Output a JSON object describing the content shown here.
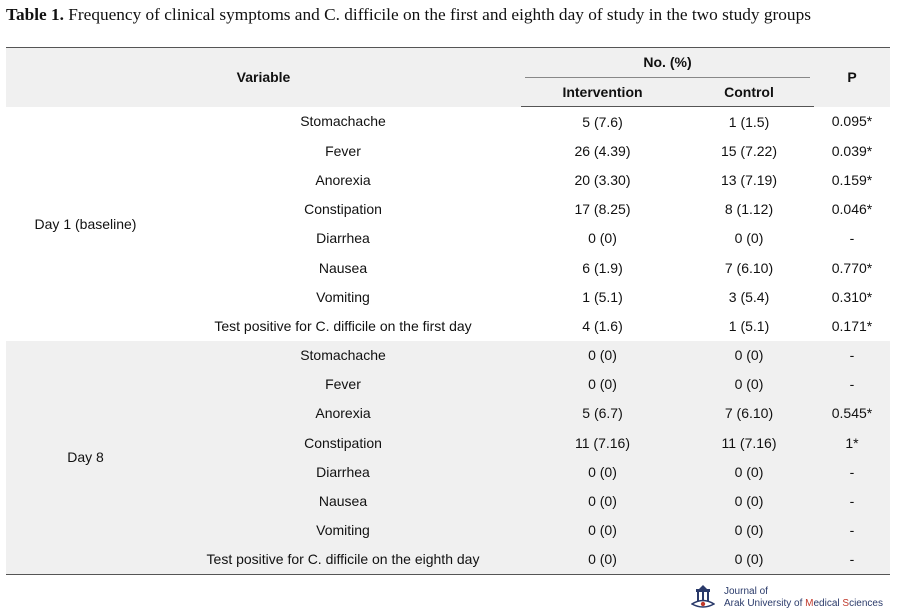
{
  "caption": {
    "label": "Table 1.",
    "text": "Frequency of clinical symptoms and C. difficile on the first and eighth day of study in the two study groups"
  },
  "header": {
    "variable": "Variable",
    "group_header": "No. (%)",
    "intervention": "Intervention",
    "control": "Control",
    "p": "P"
  },
  "groups": [
    {
      "label": "Day 1 (baseline)",
      "rows": [
        {
          "variable": "Stomachache",
          "intervention": "5 (7.6)",
          "control": "1 (1.5)",
          "p": "0.095*"
        },
        {
          "variable": "Fever",
          "intervention": "26 (4.39)",
          "control": "15 (7.22)",
          "p": "0.039*"
        },
        {
          "variable": "Anorexia",
          "intervention": "20 (3.30)",
          "control": "13 (7.19)",
          "p": "0.159*"
        },
        {
          "variable": "Constipation",
          "intervention": "17 (8.25)",
          "control": "8 (1.12)",
          "p": "0.046*"
        },
        {
          "variable": "Diarrhea",
          "intervention": "0 (0)",
          "control": "0 (0)",
          "p": "-"
        },
        {
          "variable": "Nausea",
          "intervention": "6 (1.9)",
          "control": "7 (6.10)",
          "p": "0.770*"
        },
        {
          "variable": "Vomiting",
          "intervention": "1 (5.1)",
          "control": "3 (5.4)",
          "p": "0.310*"
        },
        {
          "variable": "Test positive for C. difficile on the first day",
          "intervention": "4 (1.6)",
          "control": "1 (5.1)",
          "p": "0.171*"
        }
      ]
    },
    {
      "label": "Day 8",
      "rows": [
        {
          "variable": "Stomachache",
          "intervention": "0 (0)",
          "control": "0 (0)",
          "p": "-"
        },
        {
          "variable": "Fever",
          "intervention": "0 (0)",
          "control": "0 (0)",
          "p": "-"
        },
        {
          "variable": "Anorexia",
          "intervention": "5 (6.7)",
          "control": "7 (6.10)",
          "p": "0.545*"
        },
        {
          "variable": "Constipation",
          "intervention": "11 (7.16)",
          "control": "11 (7.16)",
          "p": "1*"
        },
        {
          "variable": "Diarrhea",
          "intervention": "0 (0)",
          "control": "0 (0)",
          "p": "-"
        },
        {
          "variable": "Nausea",
          "intervention": "0 (0)",
          "control": "0 (0)",
          "p": "-"
        },
        {
          "variable": "Vomiting",
          "intervention": "0 (0)",
          "control": "0 (0)",
          "p": "-"
        },
        {
          "variable": "Test positive for C. difficile on the eighth day",
          "intervention": "0 (0)",
          "control": "0 (0)",
          "p": "-"
        }
      ]
    }
  ],
  "journal_logo": {
    "line1": "Journal of",
    "line2_a": "Arak University of ",
    "line2_b": "M",
    "line2_c": "edical ",
    "line2_d": "S",
    "line2_e": "ciences"
  }
}
